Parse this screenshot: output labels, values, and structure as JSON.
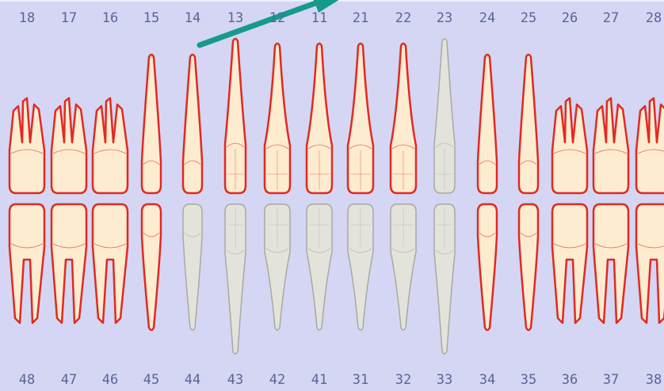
{
  "colors": {
    "background": "#d4d6f4",
    "number_text": "#5b6496",
    "healthy_tooth_fill": "#fdecd0",
    "healthy_tooth_outline": "#e02a22",
    "inactive_tooth_fill": "#e3e3dc",
    "inactive_tooth_outline": "#a9a9a2",
    "annotation_arrow": "#159a8c"
  },
  "upper_numbers": [
    "18",
    "17",
    "16",
    "15",
    "14",
    "13",
    "12",
    "11",
    "21",
    "22",
    "23",
    "24",
    "25",
    "26",
    "27",
    "28"
  ],
  "lower_numbers": [
    "48",
    "47",
    "46",
    "45",
    "44",
    "43",
    "42",
    "41",
    "31",
    "32",
    "33",
    "34",
    "35",
    "36",
    "37",
    "38"
  ],
  "upper_teeth": [
    {
      "number": "18",
      "kind": "molar",
      "state": "healthy"
    },
    {
      "number": "17",
      "kind": "molar",
      "state": "healthy"
    },
    {
      "number": "16",
      "kind": "molar",
      "state": "healthy"
    },
    {
      "number": "15",
      "kind": "premolar",
      "state": "healthy"
    },
    {
      "number": "14",
      "kind": "premolar",
      "state": "healthy"
    },
    {
      "number": "13",
      "kind": "canine",
      "state": "healthy"
    },
    {
      "number": "12",
      "kind": "incisor",
      "state": "healthy"
    },
    {
      "number": "11",
      "kind": "incisor",
      "state": "healthy"
    },
    {
      "number": "21",
      "kind": "incisor",
      "state": "healthy"
    },
    {
      "number": "22",
      "kind": "incisor",
      "state": "healthy"
    },
    {
      "number": "23",
      "kind": "canine",
      "state": "inactive"
    },
    {
      "number": "24",
      "kind": "premolar",
      "state": "healthy"
    },
    {
      "number": "25",
      "kind": "premolar",
      "state": "healthy"
    },
    {
      "number": "26",
      "kind": "molar",
      "state": "healthy"
    },
    {
      "number": "27",
      "kind": "molar",
      "state": "healthy"
    },
    {
      "number": "28",
      "kind": "molar",
      "state": "healthy"
    }
  ],
  "lower_teeth": [
    {
      "number": "48",
      "kind": "molar",
      "state": "healthy"
    },
    {
      "number": "47",
      "kind": "molar",
      "state": "healthy"
    },
    {
      "number": "46",
      "kind": "molar",
      "state": "healthy"
    },
    {
      "number": "45",
      "kind": "premolar",
      "state": "healthy"
    },
    {
      "number": "44",
      "kind": "premolar",
      "state": "inactive"
    },
    {
      "number": "43",
      "kind": "canine",
      "state": "inactive"
    },
    {
      "number": "42",
      "kind": "incisor",
      "state": "inactive"
    },
    {
      "number": "41",
      "kind": "incisor",
      "state": "inactive"
    },
    {
      "number": "31",
      "kind": "incisor",
      "state": "inactive"
    },
    {
      "number": "32",
      "kind": "incisor",
      "state": "inactive"
    },
    {
      "number": "33",
      "kind": "canine",
      "state": "inactive"
    },
    {
      "number": "34",
      "kind": "premolar",
      "state": "healthy"
    },
    {
      "number": "35",
      "kind": "premolar",
      "state": "healthy"
    },
    {
      "number": "36",
      "kind": "molar",
      "state": "healthy"
    },
    {
      "number": "37",
      "kind": "molar",
      "state": "healthy"
    },
    {
      "number": "38",
      "kind": "molar",
      "state": "healthy"
    }
  ]
}
